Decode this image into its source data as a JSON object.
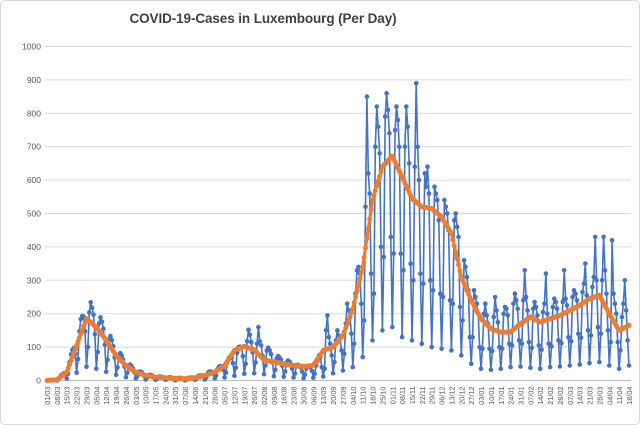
{
  "chart_data": {
    "type": "line",
    "title": "COVID-19-Cases in Luxembourg (Per Day)",
    "xlabel": "",
    "ylabel": "",
    "legend": "none",
    "grid": "horizontal",
    "background": "#FFFFFF",
    "colors": {
      "daily_series": "#4472C4",
      "average_series": "#ED7D31",
      "gridline": "#D9D9D9",
      "axis_line": "#BFBFBF",
      "axis_text": "#595959",
      "title_text": "#3F3F3F"
    },
    "y_axis": {
      "min": 0,
      "max": 1000,
      "tick_step": 100,
      "tick_values": [
        0,
        100,
        200,
        300,
        400,
        500,
        600,
        700,
        800,
        900,
        1000
      ]
    },
    "x_axis": {
      "points_per_tick": 7,
      "tick_labels": [
        "01/03",
        "08/03",
        "15/03",
        "22/03",
        "29/03",
        "05/04",
        "12/04",
        "19/04",
        "26/04",
        "03/05",
        "10/05",
        "17/05",
        "24/05",
        "31/05",
        "07/06",
        "14/06",
        "21/06",
        "28/06",
        "05/07",
        "12/07",
        "19/07",
        "26/07",
        "02/08",
        "09/08",
        "16/08",
        "23/08",
        "30/08",
        "06/09",
        "13/09",
        "20/09",
        "27/09",
        "04/10",
        "11/10",
        "18/10",
        "25/10",
        "01/11",
        "08/11",
        "15/11",
        "22/11",
        "29/11",
        "06/12",
        "13/12",
        "20/12",
        "27/12",
        "03/01",
        "10/01",
        "17/01",
        "24/01",
        "31/01",
        "07/02",
        "14/02",
        "21/02",
        "28/02",
        "07/03",
        "14/03",
        "21/03",
        "28/03",
        "04/04",
        "11/04",
        "18/04"
      ]
    },
    "n_points": 414,
    "series": [
      {
        "name": "daily-cases",
        "color": "#4472C4",
        "style": "thin-line-with-round-markers",
        "values": [
          0,
          0,
          1,
          1,
          1,
          2,
          1,
          0,
          3,
          10,
          16,
          19,
          22,
          18,
          6,
          20,
          55,
          78,
          91,
          97,
          80,
          23,
          64,
          147,
          184,
          193,
          191,
          148,
          41,
          100,
          204,
          234,
          218,
          197,
          139,
          35,
          85,
          171,
          189,
          176,
          155,
          107,
          26,
          62,
          123,
          133,
          121,
          103,
          69,
          17,
          39,
          76,
          82,
          74,
          63,
          42,
          10,
          23,
          45,
          48,
          43,
          36,
          24,
          6,
          13,
          25,
          27,
          25,
          21,
          14,
          3,
          8,
          15,
          17,
          16,
          13,
          9,
          2,
          5,
          11,
          12,
          11,
          10,
          7,
          2,
          4,
          8,
          10,
          9,
          8,
          5,
          1,
          3,
          7,
          8,
          7,
          6,
          4,
          1,
          3,
          7,
          8,
          9,
          9,
          7,
          2,
          5,
          12,
          15,
          15,
          15,
          12,
          3,
          9,
          21,
          26,
          27,
          26,
          20,
          6,
          15,
          34,
          41,
          43,
          42,
          32,
          9,
          24,
          54,
          67,
          69,
          68,
          52,
          14,
          38,
          83,
          100,
          101,
          98,
          73,
          20,
          50,
          118,
          152,
          137,
          114,
          84,
          22,
          54,
          110,
          160,
          117,
          105,
          74,
          19,
          45,
          89,
          98,
          90,
          79,
          54,
          13,
          32,
          66,
          73,
          69,
          62,
          44,
          11,
          27,
          54,
          60,
          57,
          50,
          35,
          9,
          21,
          43,
          47,
          44,
          39,
          27,
          7,
          17,
          36,
          42,
          42,
          40,
          29,
          8,
          20,
          45,
          60,
          75,
          70,
          40,
          12,
          35,
          150,
          195,
          130,
          110,
          75,
          22,
          55,
          120,
          150,
          135,
          125,
          90,
          30,
          80,
          170,
          230,
          210,
          190,
          140,
          40,
          110,
          260,
          330,
          340,
          320,
          230,
          70,
          180,
          520,
          850,
          620,
          560,
          320,
          120,
          260,
          700,
          820,
          760,
          680,
          400,
          150,
          370,
          790,
          860,
          810,
          740,
          430,
          160,
          380,
          750,
          820,
          780,
          700,
          380,
          130,
          330,
          700,
          820,
          760,
          650,
          350,
          120,
          300,
          640,
          890,
          700,
          600,
          320,
          110,
          290,
          620,
          580,
          640,
          560,
          300,
          100,
          270,
          580,
          560,
          540,
          480,
          260,
          95,
          250,
          540,
          520,
          500,
          450,
          240,
          90,
          230,
          480,
          500,
          460,
          430,
          220,
          75,
          180,
          360,
          340,
          310,
          270,
          130,
          50,
          130,
          270,
          250,
          230,
          200,
          100,
          35,
          95,
          200,
          230,
          195,
          170,
          95,
          32,
          88,
          190,
          250,
          210,
          175,
          100,
          35,
          95,
          200,
          220,
          215,
          195,
          110,
          40,
          105,
          230,
          260,
          240,
          215,
          120,
          42,
          110,
          240,
          330,
          250,
          210,
          115,
          38,
          98,
          215,
          235,
          220,
          195,
          105,
          35,
          92,
          205,
          230,
          320,
          200,
          110,
          40,
          102,
          220,
          245,
          235,
          215,
          120,
          42,
          112,
          235,
          330,
          245,
          225,
          130,
          45,
          118,
          250,
          270,
          260,
          240,
          140,
          48,
          128,
          265,
          290,
          350,
          255,
          150,
          52,
          135,
          280,
          310,
          430,
          300,
          160,
          55,
          140,
          300,
          430,
          330,
          260,
          150,
          45,
          115,
          420,
          260,
          230,
          200,
          115,
          35,
          90,
          190,
          230,
          300,
          210,
          120,
          45
        ]
      },
      {
        "name": "rolling-average",
        "color": "#ED7D31",
        "style": "thick-line-with-round-markers",
        "sampling": "weekly anchor value read at each x tick, drawn daily by linear interpolation",
        "weekly_values": [
          0,
          2,
          25,
          105,
          185,
          160,
          120,
          75,
          45,
          25,
          15,
          10,
          8,
          6,
          5,
          8,
          15,
          25,
          45,
          90,
          102,
          92,
          62,
          55,
          50,
          45,
          42,
          45,
          90,
          100,
          135,
          215,
          340,
          540,
          640,
          672,
          610,
          545,
          520,
          515,
          490,
          440,
          310,
          240,
          185,
          155,
          145,
          145,
          170,
          190,
          175,
          185,
          195,
          210,
          225,
          245,
          255,
          200,
          150,
          165
        ]
      }
    ]
  }
}
